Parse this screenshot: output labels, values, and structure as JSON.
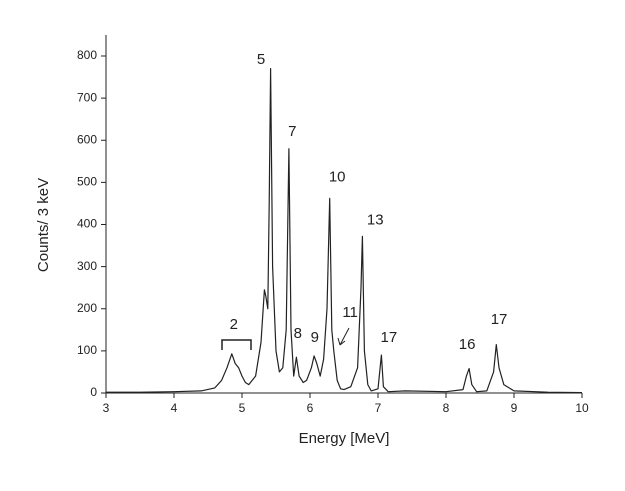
{
  "chart_data": {
    "type": "line",
    "xlabel": "Energy [MeV]",
    "ylabel": "Counts/ 3 keV",
    "xlim": [
      3,
      10
    ],
    "xticks": [
      3,
      4,
      5,
      6,
      7,
      8,
      9,
      10
    ],
    "ylim": [
      0,
      850
    ],
    "yticks": [
      0,
      100,
      200,
      300,
      400,
      500,
      600,
      700,
      800
    ],
    "series": [
      {
        "color": "#222222",
        "x": [
          3,
          3.5,
          4,
          4.4,
          4.6,
          4.7,
          4.78,
          4.85,
          4.9,
          4.95,
          5.0,
          5.05,
          5.1,
          5.2,
          5.28,
          5.33,
          5.35,
          5.38,
          5.4,
          5.42,
          5.45,
          5.5,
          5.55,
          5.6,
          5.65,
          5.69,
          5.72,
          5.76,
          5.8,
          5.84,
          5.9,
          5.95,
          6.02,
          6.06,
          6.1,
          6.15,
          6.2,
          6.25,
          6.29,
          6.32,
          6.35,
          6.4,
          6.45,
          6.5,
          6.6,
          6.7,
          6.75,
          6.77,
          6.8,
          6.85,
          6.9,
          7.0,
          7.05,
          7.08,
          7.15,
          7.4,
          8.0,
          8.25,
          8.3,
          8.34,
          8.38,
          8.45,
          8.6,
          8.7,
          8.74,
          8.78,
          8.85,
          9.0,
          9.5,
          10
        ],
        "values": [
          2,
          2,
          3,
          5,
          12,
          30,
          60,
          93,
          70,
          60,
          40,
          25,
          20,
          40,
          120,
          245,
          230,
          200,
          450,
          770,
          300,
          100,
          50,
          60,
          150,
          580,
          150,
          40,
          85,
          40,
          25,
          30,
          60,
          88,
          70,
          40,
          80,
          200,
          462,
          150,
          100,
          30,
          10,
          8,
          15,
          60,
          250,
          372,
          100,
          20,
          5,
          10,
          90,
          15,
          3,
          5,
          3,
          8,
          40,
          58,
          20,
          3,
          5,
          50,
          115,
          60,
          20,
          5,
          2,
          1
        ]
      }
    ],
    "annotations": [
      {
        "text": "2",
        "x": 4.88,
        "y": 161
      },
      {
        "text": "5",
        "x": 5.28,
        "y": 791
      },
      {
        "text": "7",
        "x": 5.74,
        "y": 620
      },
      {
        "text": "8",
        "x": 5.82,
        "y": 140
      },
      {
        "text": "9",
        "x": 6.07,
        "y": 131
      },
      {
        "text": "10",
        "x": 6.4,
        "y": 511
      },
      {
        "text": "11",
        "x": 6.59,
        "y": 190
      },
      {
        "text": "13",
        "x": 6.96,
        "y": 409
      },
      {
        "text": "17",
        "x": 7.16,
        "y": 131
      },
      {
        "text": "16",
        "x": 8.31,
        "y": 114
      },
      {
        "text": "17",
        "x": 8.78,
        "y": 173
      }
    ]
  }
}
